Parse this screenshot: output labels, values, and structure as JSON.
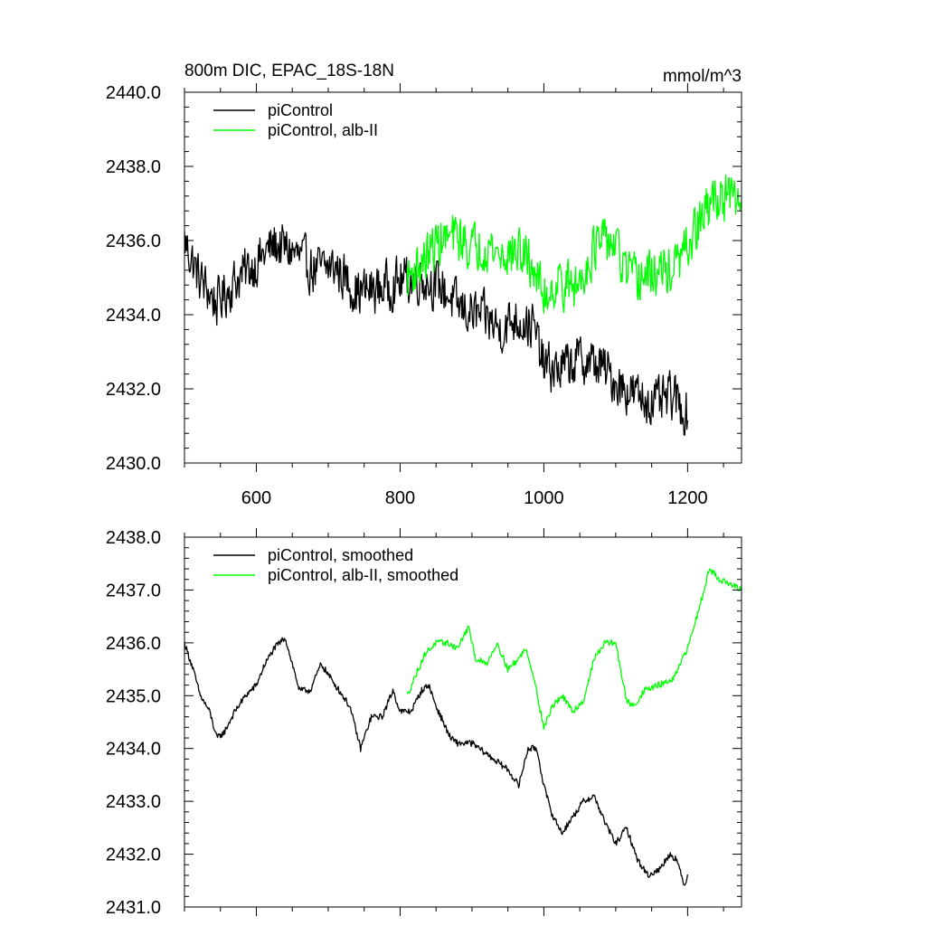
{
  "chart_data": [
    {
      "type": "line",
      "title": "800m DIC, EPAC_18S-18N",
      "units": "mmol/m^3",
      "xlim": [
        500,
        1275
      ],
      "ylim": [
        2430.0,
        2440.0
      ],
      "x_ticks": [
        600,
        800,
        1000,
        1200
      ],
      "x_tick_labels": [
        "600",
        "800",
        "1000",
        "1200"
      ],
      "y_ticks": [
        2430,
        2432,
        2434,
        2436,
        2438,
        2440
      ],
      "y_tick_labels": [
        "2430.0",
        "2432.0",
        "2434.0",
        "2436.0",
        "2438.0",
        "2440.0"
      ],
      "legend_position": "top-left",
      "series": [
        {
          "name": "piControl",
          "color": "#000000",
          "x_start": 500,
          "x_end": 1200,
          "trend": [
            [
              500,
              2436.0
            ],
            [
              520,
              2435.0
            ],
            [
              545,
              2434.3
            ],
            [
              570,
              2434.9
            ],
            [
              600,
              2435.4
            ],
            [
              625,
              2435.9
            ],
            [
              650,
              2435.7
            ],
            [
              680,
              2435.2
            ],
            [
              710,
              2435.3
            ],
            [
              740,
              2434.6
            ],
            [
              770,
              2434.7
            ],
            [
              800,
              2434.9
            ],
            [
              830,
              2435.0
            ],
            [
              860,
              2434.7
            ],
            [
              880,
              2434.2
            ],
            [
              920,
              2433.9
            ],
            [
              940,
              2433.6
            ],
            [
              960,
              2433.9
            ],
            [
              985,
              2433.7
            ],
            [
              1000,
              2432.6
            ],
            [
              1020,
              2432.5
            ],
            [
              1050,
              2432.8
            ],
            [
              1080,
              2432.6
            ],
            [
              1100,
              2432.2
            ],
            [
              1130,
              2431.8
            ],
            [
              1160,
              2431.6
            ],
            [
              1180,
              2431.8
            ],
            [
              1200,
              2431.3
            ]
          ],
          "noise_amplitude": 0.6
        },
        {
          "name": "piControl, alb-II",
          "color": "#00ff00",
          "x_start": 810,
          "x_end": 1275,
          "trend": [
            [
              810,
              2435.0
            ],
            [
              830,
              2435.4
            ],
            [
              855,
              2436.0
            ],
            [
              880,
              2436.1
            ],
            [
              900,
              2435.8
            ],
            [
              920,
              2435.9
            ],
            [
              940,
              2435.6
            ],
            [
              965,
              2435.7
            ],
            [
              985,
              2435.3
            ],
            [
              1000,
              2434.5
            ],
            [
              1020,
              2434.9
            ],
            [
              1045,
              2434.7
            ],
            [
              1070,
              2435.8
            ],
            [
              1095,
              2436.0
            ],
            [
              1110,
              2435.3
            ],
            [
              1125,
              2434.9
            ],
            [
              1150,
              2435.1
            ],
            [
              1180,
              2435.2
            ],
            [
              1200,
              2435.8
            ],
            [
              1220,
              2436.6
            ],
            [
              1240,
              2437.2
            ],
            [
              1260,
              2437.1
            ],
            [
              1275,
              2437.0
            ]
          ],
          "noise_amplitude": 0.6
        }
      ]
    },
    {
      "type": "line",
      "xlim": [
        500,
        1275
      ],
      "ylim": [
        2431.0,
        2438.0
      ],
      "x_ticks": [
        600,
        800,
        1000,
        1200
      ],
      "y_ticks": [
        2431,
        2432,
        2433,
        2434,
        2435,
        2436,
        2437,
        2438
      ],
      "y_tick_labels": [
        "2431.0",
        "2432.0",
        "2433.0",
        "2434.0",
        "2435.0",
        "2436.0",
        "2437.0",
        "2438.0"
      ],
      "legend_position": "top-left",
      "series": [
        {
          "name": "piControl, smoothed",
          "color": "#000000",
          "x_start": 500,
          "x_end": 1200,
          "trend": [
            [
              500,
              2436.0
            ],
            [
              512,
              2435.5
            ],
            [
              522,
              2435.0
            ],
            [
              535,
              2434.7
            ],
            [
              545,
              2434.2
            ],
            [
              555,
              2434.3
            ],
            [
              570,
              2434.7
            ],
            [
              585,
              2435.0
            ],
            [
              600,
              2435.2
            ],
            [
              612,
              2435.6
            ],
            [
              625,
              2435.9
            ],
            [
              640,
              2436.1
            ],
            [
              650,
              2435.6
            ],
            [
              660,
              2435.1
            ],
            [
              675,
              2435.1
            ],
            [
              690,
              2435.6
            ],
            [
              700,
              2435.4
            ],
            [
              715,
              2435.1
            ],
            [
              730,
              2434.8
            ],
            [
              745,
              2434.0
            ],
            [
              760,
              2434.6
            ],
            [
              775,
              2434.6
            ],
            [
              790,
              2435.1
            ],
            [
              800,
              2434.7
            ],
            [
              815,
              2434.7
            ],
            [
              830,
              2435.1
            ],
            [
              840,
              2435.2
            ],
            [
              850,
              2434.8
            ],
            [
              860,
              2434.5
            ],
            [
              870,
              2434.2
            ],
            [
              880,
              2434.1
            ],
            [
              900,
              2434.1
            ],
            [
              920,
              2433.9
            ],
            [
              940,
              2433.7
            ],
            [
              950,
              2433.6
            ],
            [
              965,
              2433.3
            ],
            [
              978,
              2434.0
            ],
            [
              990,
              2434.0
            ],
            [
              1000,
              2433.3
            ],
            [
              1010,
              2432.8
            ],
            [
              1025,
              2432.4
            ],
            [
              1040,
              2432.7
            ],
            [
              1055,
              2433.0
            ],
            [
              1070,
              2433.1
            ],
            [
              1085,
              2432.6
            ],
            [
              1100,
              2432.2
            ],
            [
              1115,
              2432.5
            ],
            [
              1130,
              2431.9
            ],
            [
              1145,
              2431.6
            ],
            [
              1160,
              2431.7
            ],
            [
              1175,
              2432.0
            ],
            [
              1185,
              2431.9
            ],
            [
              1195,
              2431.4
            ],
            [
              1200,
              2431.6
            ]
          ],
          "noise_amplitude": 0.12
        },
        {
          "name": "piControl, alb-II, smoothed",
          "color": "#00ff00",
          "x_start": 810,
          "x_end": 1275,
          "trend": [
            [
              810,
              2435.0
            ],
            [
              822,
              2435.4
            ],
            [
              835,
              2435.8
            ],
            [
              850,
              2436.0
            ],
            [
              865,
              2436.0
            ],
            [
              880,
              2435.9
            ],
            [
              895,
              2436.3
            ],
            [
              905,
              2435.7
            ],
            [
              920,
              2435.6
            ],
            [
              935,
              2436.0
            ],
            [
              950,
              2435.5
            ],
            [
              965,
              2435.7
            ],
            [
              975,
              2435.9
            ],
            [
              985,
              2435.4
            ],
            [
              1000,
              2434.4
            ],
            [
              1012,
              2434.8
            ],
            [
              1025,
              2435.0
            ],
            [
              1040,
              2434.7
            ],
            [
              1055,
              2434.9
            ],
            [
              1070,
              2435.7
            ],
            [
              1085,
              2436.0
            ],
            [
              1100,
              2436.0
            ],
            [
              1115,
              2434.9
            ],
            [
              1125,
              2434.8
            ],
            [
              1140,
              2435.1
            ],
            [
              1160,
              2435.2
            ],
            [
              1180,
              2435.3
            ],
            [
              1200,
              2435.9
            ],
            [
              1215,
              2436.6
            ],
            [
              1230,
              2437.4
            ],
            [
              1245,
              2437.2
            ],
            [
              1260,
              2437.1
            ],
            [
              1275,
              2437.0
            ]
          ],
          "noise_amplitude": 0.12
        }
      ]
    }
  ]
}
